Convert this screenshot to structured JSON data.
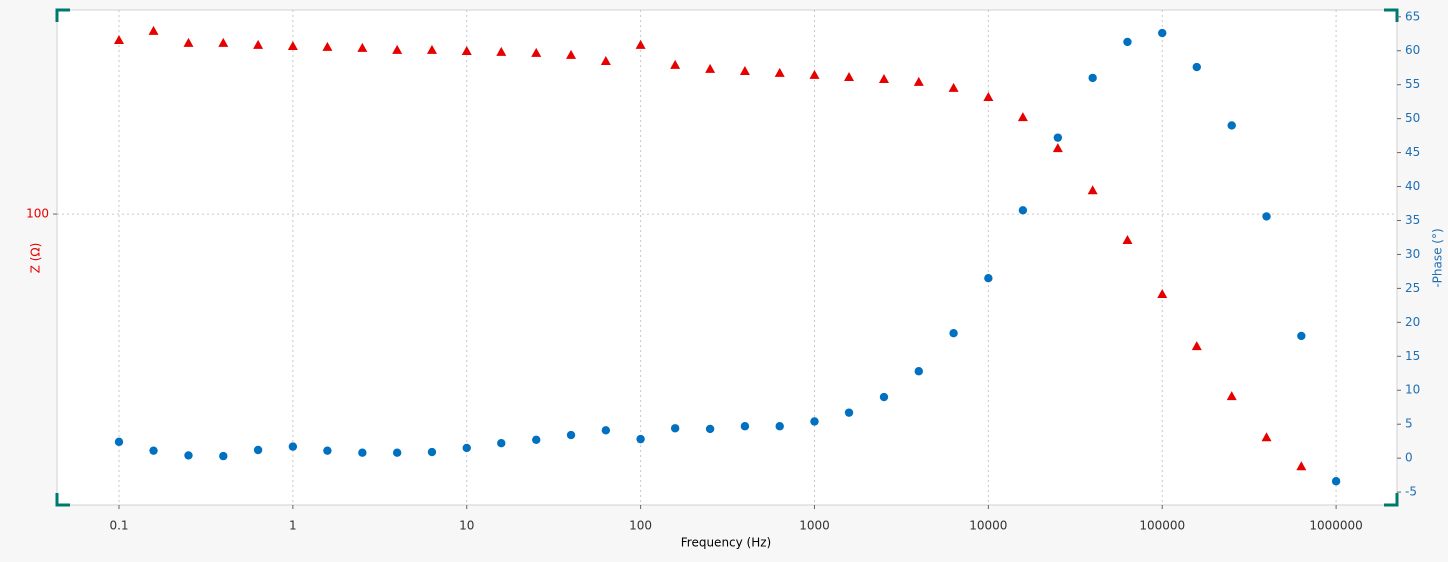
{
  "chart_data": {
    "type": "scatter",
    "x_label": "Frequency (Hz)",
    "y_label": "Z (Ω)",
    "y2_label": "-Phase (°)",
    "x": [
      0.1,
      0.158,
      0.251,
      0.398,
      0.631,
      1,
      1.58,
      2.51,
      3.98,
      6.31,
      10,
      15.8,
      25.1,
      39.8,
      63.1,
      100,
      158,
      251,
      398,
      631,
      1000,
      1580,
      2510,
      3980,
      6310,
      10000,
      15800,
      25100,
      39800,
      63100,
      100000,
      158000,
      251000,
      398000,
      631000,
      1000000
    ],
    "series": [
      {
        "name": "Z (Ω)",
        "color": "#e60000",
        "marker": "triangle",
        "values": [
          719,
          797,
          696,
          696,
          680,
          672,
          665,
          658,
          643,
          643,
          635,
          628,
          621,
          607,
          567,
          680,
          542,
          518,
          506,
          495,
          484,
          473,
          462,
          447,
          418,
          377,
          300,
          211,
          131,
          74.5,
          40.4,
          22.4,
          12.7,
          7.97,
          5.74,
          null
        ]
      },
      {
        "name": "-Phase (°)",
        "color": "#0070c0",
        "marker": "circle",
        "axis": "y2",
        "values": [
          2.4,
          1.1,
          0.4,
          0.3,
          1.2,
          1.7,
          1.1,
          0.8,
          0.8,
          0.9,
          1.5,
          2.2,
          2.7,
          3.4,
          4.1,
          2.8,
          4.4,
          4.3,
          4.7,
          4.7,
          5.4,
          6.7,
          9.0,
          12.8,
          18.4,
          26.5,
          36.5,
          47.2,
          56.0,
          61.3,
          62.6,
          57.6,
          49.0,
          35.6,
          18.0,
          -3.4
        ]
      }
    ],
    "x_log": true,
    "y_log": true,
    "xlim": [
      0.044,
      2240000
    ],
    "xticks": [
      0.1,
      1,
      10,
      100,
      1000,
      10000,
      100000,
      1000000
    ],
    "ylim": [
      3.7,
      1010
    ],
    "yticks": [
      100
    ],
    "y2lim": [
      -6.9,
      66
    ],
    "y2ticks": [
      -5,
      0,
      5,
      10,
      15,
      20,
      25,
      30,
      35,
      40,
      45,
      50,
      55,
      60,
      65
    ],
    "grid": true
  }
}
